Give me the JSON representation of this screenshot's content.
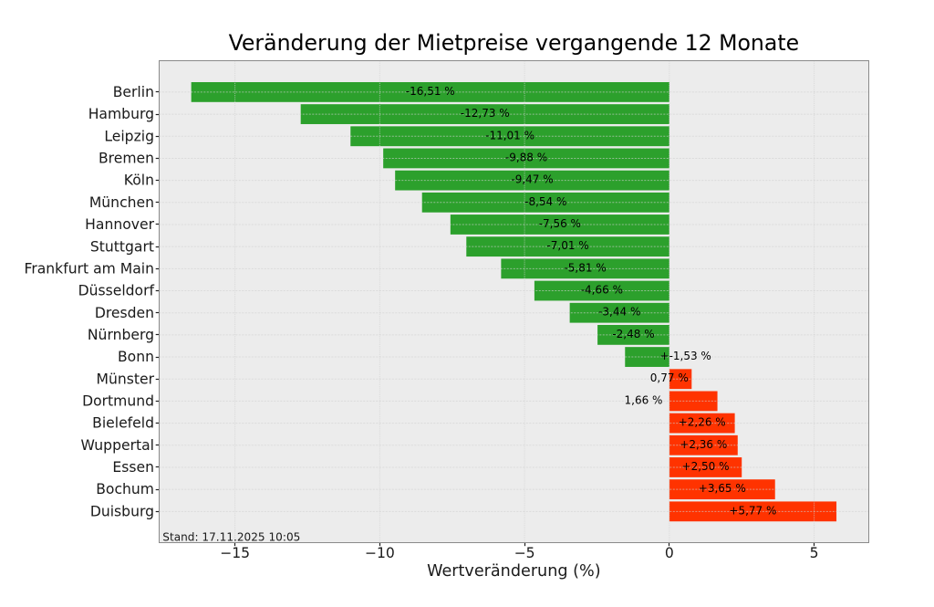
{
  "chart_data": {
    "type": "bar",
    "orientation": "horizontal",
    "title": "Veränderung der Mietpreise vergangende 12 Monate",
    "xlabel": "Wertveränderung (%)",
    "ylabel": "",
    "annotation": "Stand: 17.11.2025 10:05",
    "categories": [
      "Berlin",
      "Hamburg",
      "Leipzig",
      "Bremen",
      "Köln",
      "München",
      "Hannover",
      "Stuttgart",
      "Frankfurt am Main",
      "Düsseldorf",
      "Dresden",
      "Nürnberg",
      "Bonn",
      "Münster",
      "Dortmund",
      "Bielefeld",
      "Wuppertal",
      "Essen",
      "Bochum",
      "Duisburg"
    ],
    "values": [
      -16.51,
      -12.73,
      -11.01,
      -9.88,
      -9.47,
      -8.54,
      -7.56,
      -7.01,
      -5.81,
      -4.66,
      -3.44,
      -2.48,
      -1.53,
      0.77,
      1.66,
      2.26,
      2.36,
      2.5,
      3.65,
      5.77
    ],
    "bar_labels": [
      "-16,51 %",
      "-12,73 %",
      "-11,01 %",
      "-9,88 %",
      "-9,47 %",
      "-8,54 %",
      "-7,56 %",
      "-7,01 %",
      "-5,81 %",
      "-4,66 %",
      "-3,44 %",
      "-2,48 %",
      "+-1,53 %",
      "0,77 %",
      "1,66 %",
      "+2,26 %",
      "+2,36 %",
      "+2,50 %",
      "+3,65 %",
      "+5,77 %"
    ],
    "bar_label_x_override": {
      "12": 0.562,
      "13": -0.002,
      "14": -0.893
    },
    "x_ticks": [
      -15,
      -10,
      -5,
      0,
      5
    ],
    "x_tick_labels": [
      "−15",
      "−10",
      "−5",
      "0",
      "5"
    ],
    "xlim": [
      -17.624,
      6.884
    ],
    "grid": true,
    "legend": false,
    "colors": {
      "negative_bar": "#2ca02c",
      "positive_bar": "#ff3300",
      "plot_background": "#ececec",
      "figure_background": "#ffffff",
      "grid_line": "#d0d0d0",
      "spine": "#8a8a8a",
      "tick_mark": "#1f1f1f",
      "text": "#1a1a1a",
      "title_text": "#000000"
    }
  }
}
